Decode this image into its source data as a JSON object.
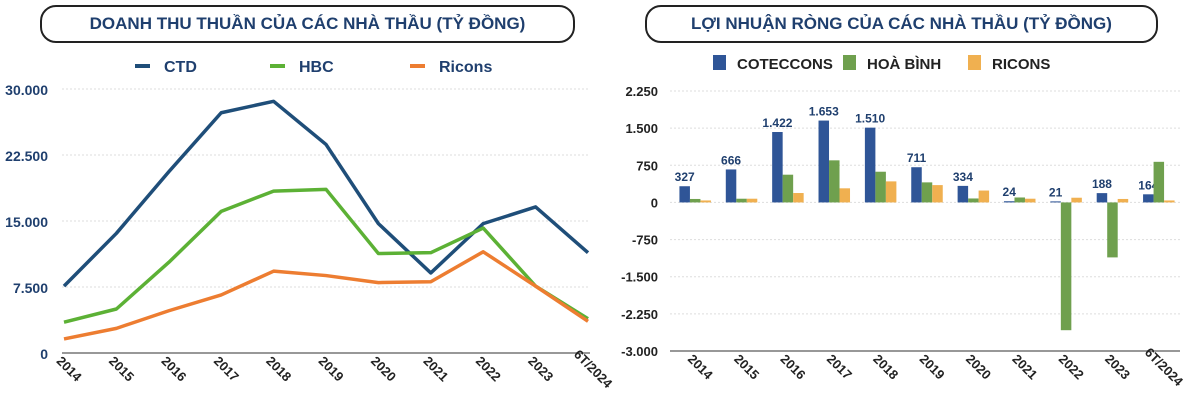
{
  "chart_data": [
    {
      "type": "line",
      "title": "DOANH THU THUẦN CỦA CÁC NHÀ THẦU (TỶ ĐỒNG)",
      "categories": [
        "2014",
        "2015",
        "2016",
        "2017",
        "2018",
        "2019",
        "2020",
        "2021",
        "2022",
        "2023",
        "6T/2024"
      ],
      "ylim": [
        0,
        30000
      ],
      "yticks": [
        0,
        7500,
        15000,
        22500,
        30000
      ],
      "ytick_labels": [
        "0",
        "7.500",
        "15.000",
        "22.500",
        "30.000"
      ],
      "grid": true,
      "legend_position": "top",
      "series": [
        {
          "name": "CTD",
          "color": "#1f4e79",
          "values": [
            7600,
            13600,
            20600,
            27300,
            28600,
            23700,
            14700,
            9100,
            14700,
            16600,
            11400
          ]
        },
        {
          "name": "HBC",
          "color": "#5cb135",
          "values": [
            3500,
            5000,
            10300,
            16100,
            18400,
            18600,
            11300,
            11400,
            14200,
            7600,
            3900
          ]
        },
        {
          "name": "Ricons",
          "color": "#ed7d31",
          "values": [
            1600,
            2800,
            4800,
            6600,
            9300,
            8800,
            8000,
            8100,
            11500,
            7600,
            3600
          ]
        }
      ]
    },
    {
      "type": "bar",
      "title": "LỢI NHUẬN RÒNG CỦA CÁC NHÀ THẦU (TỶ ĐỒNG)",
      "categories": [
        "2014",
        "2015",
        "2016",
        "2017",
        "2018",
        "2019",
        "2020",
        "2021",
        "2022",
        "2023",
        "6T/2024"
      ],
      "ylim": [
        -3000,
        2250
      ],
      "yticks": [
        -3000,
        -2250,
        -1500,
        -750,
        0,
        750,
        1500,
        2250
      ],
      "ytick_labels": [
        "-3.000",
        "-2.250",
        "-1.500",
        "-750",
        "0",
        "750",
        "1.500",
        "2.250"
      ],
      "grid": true,
      "legend_position": "top",
      "series": [
        {
          "name": "COTECCONS",
          "color": "#2f5597",
          "values": [
            327,
            666,
            1422,
            1653,
            1510,
            711,
            334,
            24,
            21,
            188,
            164
          ],
          "data_labels": [
            "327",
            "666",
            "1.422",
            "1.653",
            "1.510",
            "711",
            "334",
            "24",
            "21",
            "188",
            "164"
          ]
        },
        {
          "name": "HOÀ BÌNH",
          "color": "#6fa04e",
          "values": [
            70,
            75,
            560,
            850,
            620,
            405,
            80,
            100,
            -2580,
            -1110,
            820
          ]
        },
        {
          "name": "RICONS",
          "color": "#f0b050",
          "values": [
            40,
            75,
            190,
            285,
            425,
            350,
            240,
            75,
            95,
            70,
            40
          ]
        }
      ]
    }
  ]
}
